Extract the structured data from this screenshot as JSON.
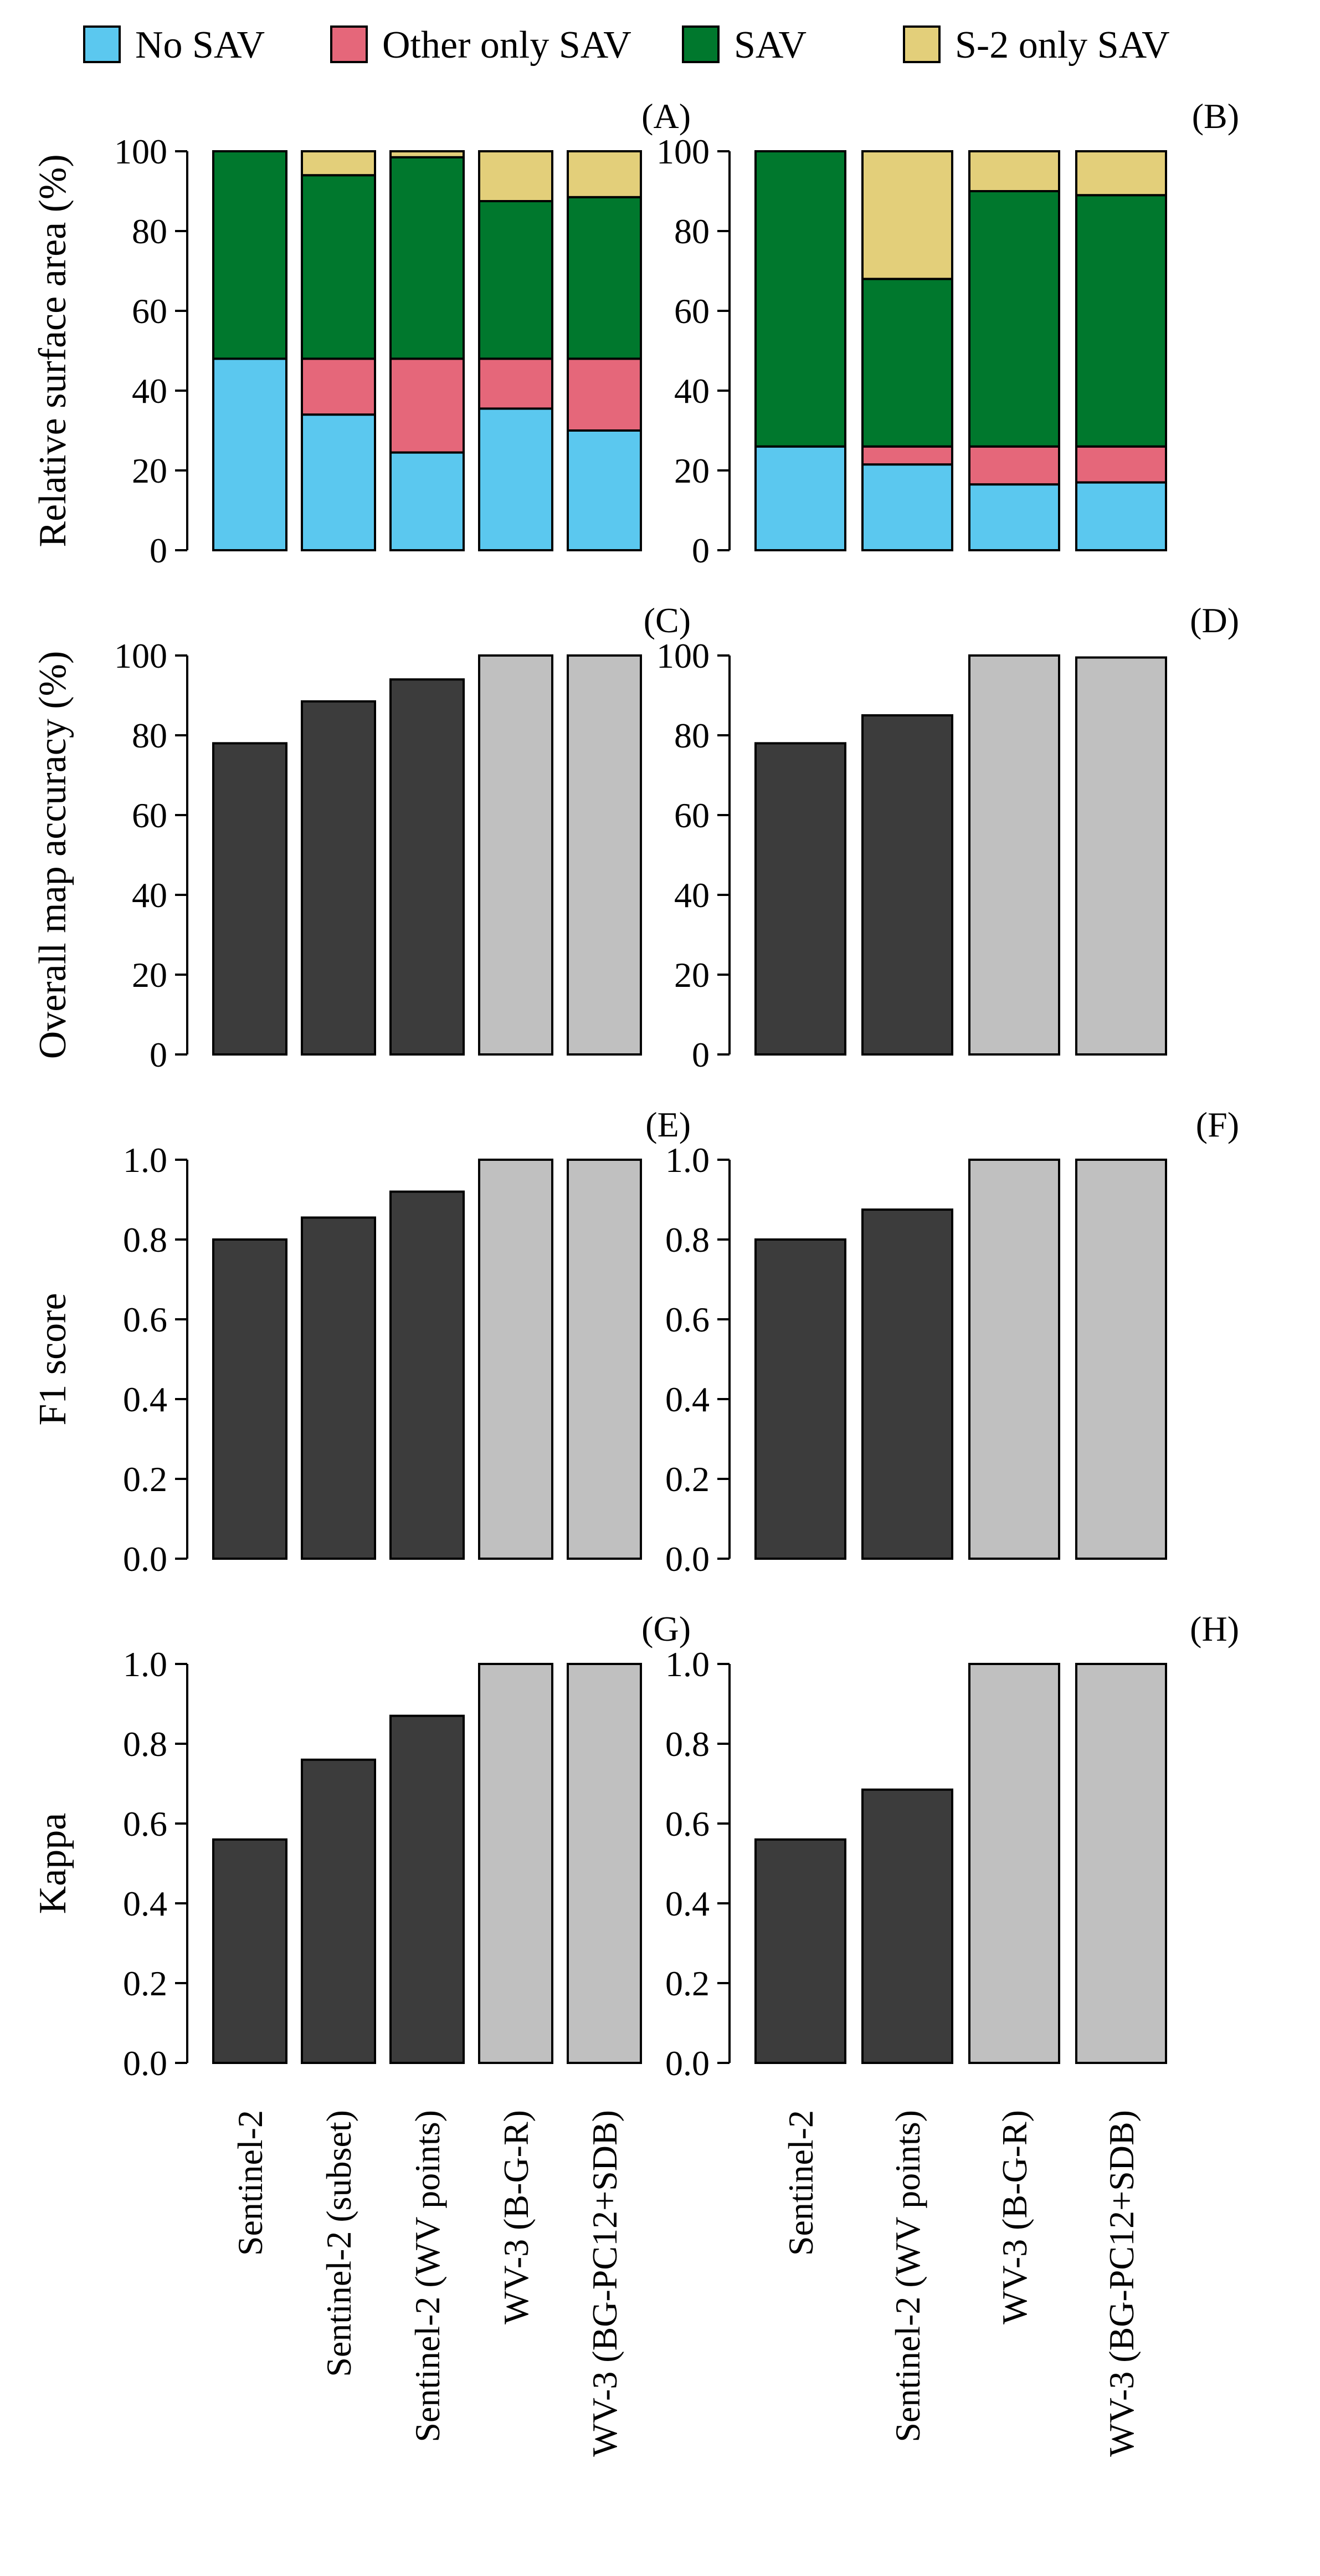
{
  "legend": {
    "items": [
      {
        "key": "no_sav",
        "label": "No SAV",
        "color": "#5bc8ef"
      },
      {
        "key": "other_only",
        "label": "Other only SAV",
        "color": "#e5677a"
      },
      {
        "key": "sav",
        "label": "SAV",
        "color": "#00782d"
      },
      {
        "key": "s2_only",
        "label": "S-2 only SAV",
        "color": "#e3cf7a"
      }
    ]
  },
  "colors": {
    "sentinel_bar": "#3c3c3c",
    "wv3_bar": "#c0c0c0",
    "outline": "#000000"
  },
  "rows": [
    {
      "ylabel": "Relative surface area (%)",
      "ticks": [
        "0",
        "20",
        "40",
        "60",
        "80",
        "100"
      ]
    },
    {
      "ylabel": "Overall map accuracy (%)",
      "ticks": [
        "0",
        "20",
        "40",
        "60",
        "80",
        "100"
      ]
    },
    {
      "ylabel": "F1 score",
      "ticks": [
        "0.0",
        "0.2",
        "0.4",
        "0.6",
        "0.8",
        "1.0"
      ]
    },
    {
      "ylabel": "Kappa",
      "ticks": [
        "0.0",
        "0.2",
        "0.4",
        "0.6",
        "0.8",
        "1.0"
      ]
    }
  ],
  "columns": [
    {
      "categories": [
        "Sentinel-2",
        "Sentinel-2 (subset)",
        "Sentinel-2 (WV points)",
        "WV-3 (B-G-R)",
        "WV-3 (BG-PC12+SDB)"
      ]
    },
    {
      "categories": [
        "Sentinel-2",
        "Sentinel-2 (WV points)",
        "WV-3 (B-G-R)",
        "WV-3 (BG-PC12+SDB)"
      ]
    }
  ],
  "chart_data": [
    {
      "panel": "(A)",
      "type": "bar",
      "stacked": true,
      "row": 0,
      "col": 0,
      "ylim": [
        0,
        100
      ],
      "ylabel": "Relative surface area (%)",
      "categories": [
        "Sentinel-2",
        "Sentinel-2 (subset)",
        "Sentinel-2 (WV points)",
        "WV-3 (B-G-R)",
        "WV-3 (BG-PC12+SDB)"
      ],
      "series": [
        {
          "name": "No SAV",
          "values": [
            48,
            34,
            24.5,
            35.5,
            30
          ]
        },
        {
          "name": "Other only SAV",
          "values": [
            0,
            14,
            23.5,
            12.5,
            18
          ]
        },
        {
          "name": "SAV",
          "values": [
            52,
            46,
            50.5,
            39.5,
            40.5
          ]
        },
        {
          "name": "S-2 only SAV",
          "values": [
            0,
            6,
            1.5,
            12.5,
            11.5
          ]
        }
      ]
    },
    {
      "panel": "(B)",
      "type": "bar",
      "stacked": true,
      "row": 0,
      "col": 1,
      "ylim": [
        0,
        100
      ],
      "ylabel": "",
      "categories": [
        "Sentinel-2",
        "Sentinel-2 (WV points)",
        "WV-3 (B-G-R)",
        "WV-3 (BG-PC12+SDB)"
      ],
      "series": [
        {
          "name": "No SAV",
          "values": [
            26,
            21.5,
            16.5,
            17
          ]
        },
        {
          "name": "Other only SAV",
          "values": [
            0,
            4.5,
            9.5,
            9
          ]
        },
        {
          "name": "SAV",
          "values": [
            74,
            42,
            64,
            63
          ]
        },
        {
          "name": "S-2 only SAV",
          "values": [
            0,
            32,
            10,
            11
          ]
        }
      ]
    },
    {
      "panel": "(C)",
      "type": "bar",
      "row": 1,
      "col": 0,
      "ylim": [
        0,
        100
      ],
      "ylabel": "Overall map accuracy (%)",
      "categories": [
        "Sentinel-2",
        "Sentinel-2 (subset)",
        "Sentinel-2 (WV points)",
        "WV-3 (B-G-R)",
        "WV-3 (BG-PC12+SDB)"
      ],
      "values": [
        78,
        88.5,
        94,
        100,
        100
      ]
    },
    {
      "panel": "(D)",
      "type": "bar",
      "row": 1,
      "col": 1,
      "ylim": [
        0,
        100
      ],
      "ylabel": "",
      "categories": [
        "Sentinel-2",
        "Sentinel-2 (WV points)",
        "WV-3 (B-G-R)",
        "WV-3 (BG-PC12+SDB)"
      ],
      "values": [
        78,
        85,
        100,
        99.5
      ]
    },
    {
      "panel": "(E)",
      "type": "bar",
      "row": 2,
      "col": 0,
      "ylim": [
        0,
        1
      ],
      "ylabel": "F1 score",
      "categories": [
        "Sentinel-2",
        "Sentinel-2 (subset)",
        "Sentinel-2 (WV points)",
        "WV-3 (B-G-R)",
        "WV-3 (BG-PC12+SDB)"
      ],
      "values": [
        0.8,
        0.855,
        0.92,
        1.0,
        1.0
      ]
    },
    {
      "panel": "(F)",
      "type": "bar",
      "row": 2,
      "col": 1,
      "ylim": [
        0,
        1
      ],
      "ylabel": "",
      "categories": [
        "Sentinel-2",
        "Sentinel-2 (WV points)",
        "WV-3 (B-G-R)",
        "WV-3 (BG-PC12+SDB)"
      ],
      "values": [
        0.8,
        0.875,
        1.0,
        1.0
      ]
    },
    {
      "panel": "(G)",
      "type": "bar",
      "row": 3,
      "col": 0,
      "ylim": [
        0,
        1
      ],
      "ylabel": "Kappa",
      "categories": [
        "Sentinel-2",
        "Sentinel-2 (subset)",
        "Sentinel-2 (WV points)",
        "WV-3 (B-G-R)",
        "WV-3 (BG-PC12+SDB)"
      ],
      "values": [
        0.56,
        0.76,
        0.87,
        1.0,
        1.0
      ]
    },
    {
      "panel": "(H)",
      "type": "bar",
      "row": 3,
      "col": 1,
      "ylim": [
        0,
        1
      ],
      "ylabel": "",
      "categories": [
        "Sentinel-2",
        "Sentinel-2 (WV points)",
        "WV-3 (B-G-R)",
        "WV-3 (BG-PC12+SDB)"
      ],
      "values": [
        0.56,
        0.685,
        1.0,
        1.0
      ]
    }
  ]
}
